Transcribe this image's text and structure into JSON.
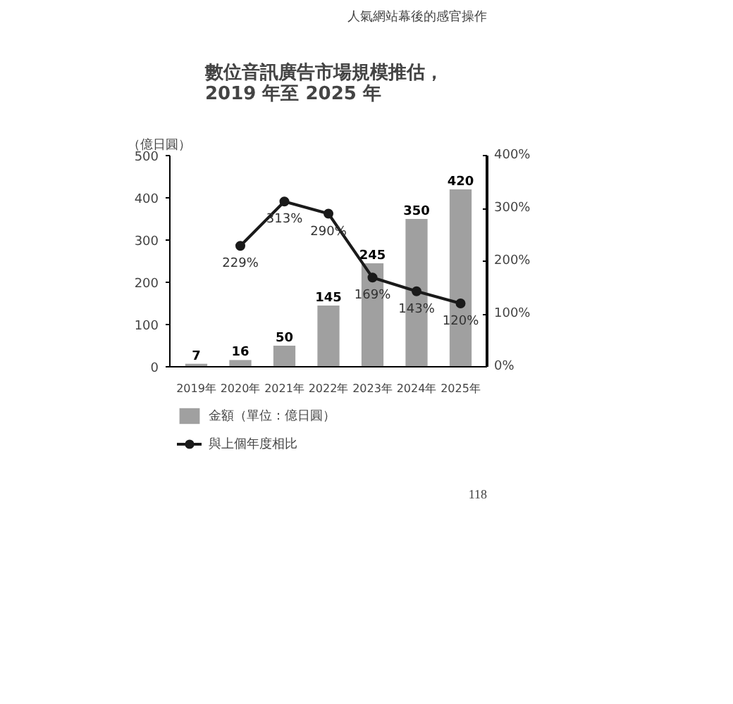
{
  "chart_data": {
    "type": "bar",
    "title": "數位音訊廣告市場規模推估，\n2019 年至 2025 年",
    "ylabel": "（億日圓）",
    "annotations": [
      "人氣網站幕後的感官操作",
      "118"
    ],
    "categories": [
      "2019年",
      "2020年",
      "2021年",
      "2022年",
      "2023年",
      "2024年",
      "2025年"
    ],
    "series": [
      {
        "name": "金額（單位：億日圓）",
        "color": "#a0a0a0",
        "values": [
          7,
          16,
          50,
          145,
          245,
          350,
          420
        ],
        "value_labels": [
          "7",
          "16",
          "50",
          "145",
          "245",
          "350",
          "420"
        ]
      },
      {
        "name": "與上個年度相比",
        "type": "line",
        "axis": "y2",
        "color": "#1a1a1a",
        "marker": "circle",
        "values": [
          null,
          229,
          313,
          290,
          169,
          143,
          120
        ],
        "value_labels": [
          null,
          "229%",
          "313%",
          "290%",
          "169%",
          "143%",
          "120%"
        ]
      }
    ],
    "ylim": [
      0,
      500
    ],
    "yticks": [
      0,
      100,
      200,
      300,
      400,
      500
    ],
    "y2lim": [
      0,
      400
    ],
    "y2ticks": [
      {
        "value": 0,
        "label": "0%"
      },
      {
        "value": 100,
        "label": "100%"
      },
      {
        "value": 200,
        "label": "200%"
      },
      {
        "value": 300,
        "label": "300%"
      },
      {
        "value": 400,
        "label": "400%"
      }
    ],
    "grid": false,
    "legend": "bottom"
  }
}
